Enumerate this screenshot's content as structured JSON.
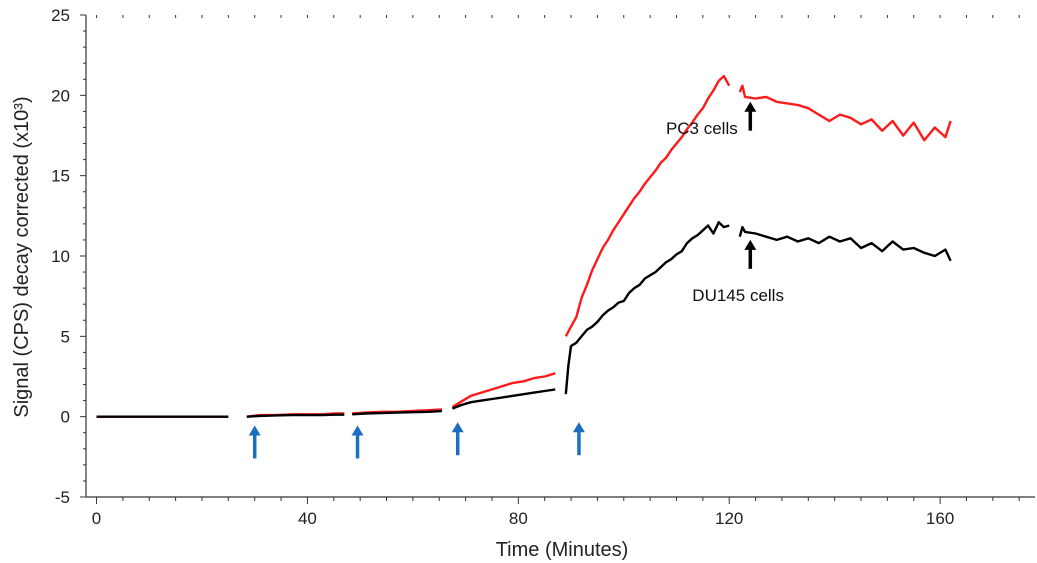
{
  "chart_data": {
    "type": "line",
    "title": "",
    "xlabel": "Time (Minutes)",
    "ylabel": "Signal (CPS) decay corrected (x10³)",
    "xlim": [
      -2,
      178
    ],
    "ylim": [
      -5,
      25
    ],
    "x_ticks": [
      0,
      40,
      80,
      120,
      160
    ],
    "y_ticks": [
      -5,
      0,
      5,
      10,
      15,
      20,
      25
    ],
    "grid": false,
    "colors": {
      "pc3": "#ff1a1a",
      "du145": "#000000",
      "injection_arrow": "#1a6fc0",
      "black_arrow": "#000000"
    },
    "series": [
      {
        "label": "PC3 cells",
        "segments": [
          [
            [
              0,
              0
            ],
            [
              25,
              0
            ]
          ],
          [
            [
              28.5,
              0.0
            ],
            [
              31,
              0.1
            ],
            [
              34,
              0.1
            ],
            [
              37,
              0.15
            ],
            [
              40,
              0.15
            ],
            [
              43,
              0.15
            ],
            [
              45,
              0.2
            ],
            [
              47,
              0.2
            ]
          ],
          [
            [
              48.5,
              0.2
            ],
            [
              51,
              0.25
            ],
            [
              54,
              0.3
            ],
            [
              57,
              0.3
            ],
            [
              60,
              0.35
            ],
            [
              63,
              0.4
            ],
            [
              65.5,
              0.45
            ]
          ],
          [
            [
              67.5,
              0.6
            ],
            [
              69,
              0.9
            ],
            [
              71,
              1.3
            ],
            [
              73,
              1.5
            ],
            [
              75,
              1.7
            ],
            [
              77,
              1.9
            ],
            [
              79,
              2.1
            ],
            [
              81,
              2.2
            ],
            [
              83,
              2.4
            ],
            [
              85,
              2.5
            ],
            [
              87,
              2.7
            ]
          ],
          [
            [
              89,
              5.0
            ],
            [
              90,
              5.6
            ],
            [
              91,
              6.2
            ],
            [
              92,
              7.4
            ],
            [
              93,
              8.2
            ],
            [
              94,
              9.1
            ],
            [
              95,
              9.8
            ],
            [
              96,
              10.5
            ],
            [
              97,
              11.0
            ],
            [
              98,
              11.6
            ],
            [
              99,
              12.1
            ],
            [
              100,
              12.6
            ],
            [
              101,
              13.1
            ],
            [
              102,
              13.6
            ],
            [
              103,
              14.0
            ],
            [
              104,
              14.5
            ],
            [
              105,
              14.9
            ],
            [
              106,
              15.3
            ],
            [
              107,
              15.8
            ],
            [
              108,
              16.1
            ],
            [
              109,
              16.6
            ],
            [
              110,
              17.0
            ],
            [
              111,
              17.4
            ],
            [
              112,
              17.9
            ],
            [
              113,
              18.3
            ],
            [
              114,
              18.8
            ],
            [
              115,
              19.2
            ],
            [
              116,
              19.8
            ],
            [
              117,
              20.3
            ],
            [
              118,
              20.9
            ],
            [
              119,
              21.2
            ],
            [
              120,
              20.6
            ]
          ],
          [
            [
              122,
              20.2
            ],
            [
              122.5,
              20.6
            ],
            [
              123,
              19.9
            ],
            [
              125,
              19.8
            ],
            [
              127,
              19.9
            ],
            [
              129,
              19.6
            ],
            [
              131,
              19.5
            ],
            [
              133,
              19.4
            ],
            [
              135,
              19.2
            ],
            [
              137,
              18.8
            ],
            [
              139,
              18.4
            ],
            [
              141,
              18.8
            ],
            [
              143,
              18.6
            ],
            [
              145,
              18.2
            ],
            [
              147,
              18.5
            ],
            [
              149,
              17.8
            ],
            [
              151,
              18.4
            ],
            [
              153,
              17.5
            ],
            [
              155,
              18.3
            ],
            [
              157,
              17.2
            ],
            [
              159,
              18.0
            ],
            [
              161,
              17.4
            ],
            [
              162,
              18.4
            ]
          ]
        ]
      },
      {
        "label": "DU145 cells",
        "segments": [
          [
            [
              0,
              0
            ],
            [
              25,
              0
            ]
          ],
          [
            [
              28.5,
              0.0
            ],
            [
              31,
              0.05
            ],
            [
              34,
              0.08
            ],
            [
              37,
              0.1
            ],
            [
              40,
              0.1
            ],
            [
              43,
              0.1
            ],
            [
              45,
              0.12
            ],
            [
              47,
              0.12
            ]
          ],
          [
            [
              48.5,
              0.15
            ],
            [
              51,
              0.2
            ],
            [
              54,
              0.22
            ],
            [
              57,
              0.25
            ],
            [
              60,
              0.28
            ],
            [
              63,
              0.3
            ],
            [
              65.5,
              0.35
            ]
          ],
          [
            [
              67.5,
              0.5
            ],
            [
              69,
              0.7
            ],
            [
              71,
              0.9
            ],
            [
              73,
              1.0
            ],
            [
              75,
              1.1
            ],
            [
              77,
              1.2
            ],
            [
              79,
              1.3
            ],
            [
              81,
              1.4
            ],
            [
              83,
              1.5
            ],
            [
              85,
              1.6
            ],
            [
              87,
              1.7
            ]
          ],
          [
            [
              89,
              1.4
            ],
            [
              89.5,
              3.2
            ],
            [
              90,
              4.4
            ],
            [
              91,
              4.6
            ],
            [
              92,
              5.0
            ],
            [
              93,
              5.4
            ],
            [
              94,
              5.6
            ],
            [
              95,
              5.9
            ],
            [
              96,
              6.3
            ],
            [
              97,
              6.6
            ],
            [
              98,
              6.8
            ],
            [
              99,
              7.1
            ],
            [
              100,
              7.2
            ],
            [
              101,
              7.7
            ],
            [
              102,
              8.0
            ],
            [
              103,
              8.2
            ],
            [
              104,
              8.6
            ],
            [
              105,
              8.8
            ],
            [
              106,
              9.0
            ],
            [
              107,
              9.3
            ],
            [
              108,
              9.6
            ],
            [
              109,
              9.8
            ],
            [
              110,
              10.1
            ],
            [
              111,
              10.3
            ],
            [
              112,
              10.8
            ],
            [
              113,
              11.1
            ],
            [
              114,
              11.3
            ],
            [
              115,
              11.6
            ],
            [
              116,
              11.9
            ],
            [
              117,
              11.4
            ],
            [
              118,
              12.1
            ],
            [
              119,
              11.8
            ],
            [
              120,
              11.9
            ]
          ],
          [
            [
              122,
              11.2
            ],
            [
              122.5,
              11.8
            ],
            [
              123,
              11.5
            ],
            [
              125,
              11.4
            ],
            [
              127,
              11.2
            ],
            [
              129,
              11.0
            ],
            [
              131,
              11.2
            ],
            [
              133,
              10.9
            ],
            [
              135,
              11.1
            ],
            [
              137,
              10.8
            ],
            [
              139,
              11.2
            ],
            [
              141,
              10.9
            ],
            [
              143,
              11.1
            ],
            [
              145,
              10.5
            ],
            [
              147,
              10.8
            ],
            [
              149,
              10.3
            ],
            [
              151,
              10.9
            ],
            [
              153,
              10.4
            ],
            [
              155,
              10.5
            ],
            [
              157,
              10.2
            ],
            [
              159,
              10.0
            ],
            [
              161,
              10.4
            ],
            [
              162,
              9.7
            ]
          ]
        ]
      }
    ],
    "annotations": [
      {
        "text": "PC3 cells",
        "x": 108,
        "y": 17.6
      },
      {
        "text": "DU145 cells",
        "x": 113,
        "y": 7.2
      }
    ],
    "arrows_blue": [
      {
        "x": 30,
        "y_tail": -2.6,
        "y_head": -0.55
      },
      {
        "x": 49.5,
        "y_tail": -2.6,
        "y_head": -0.55
      },
      {
        "x": 68.5,
        "y_tail": -2.4,
        "y_head": -0.35
      },
      {
        "x": 91.5,
        "y_tail": -2.4,
        "y_head": -0.35
      }
    ],
    "arrows_black": [
      {
        "x": 124,
        "y_tail": 17.8,
        "y_head": 19.6
      },
      {
        "x": 124,
        "y_tail": 9.2,
        "y_head": 11.0
      }
    ]
  }
}
